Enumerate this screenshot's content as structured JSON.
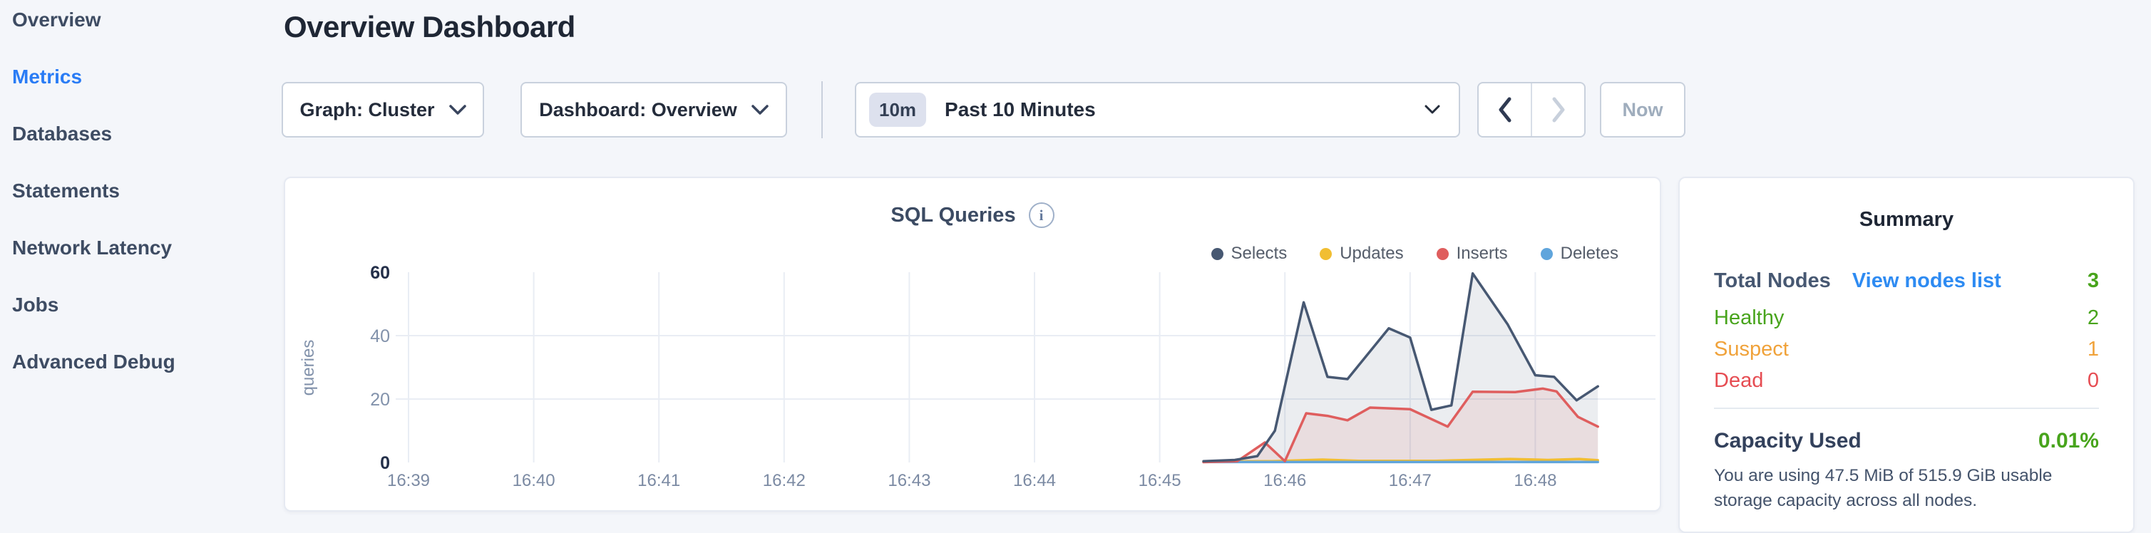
{
  "sidebar": {
    "items": [
      {
        "label": "Overview",
        "active": false
      },
      {
        "label": "Metrics",
        "active": true
      },
      {
        "label": "Databases",
        "active": false
      },
      {
        "label": "Statements",
        "active": false
      },
      {
        "label": "Network Latency",
        "active": false
      },
      {
        "label": "Jobs",
        "active": false
      },
      {
        "label": "Advanced Debug",
        "active": false
      }
    ]
  },
  "header": {
    "title": "Overview Dashboard"
  },
  "toolbar": {
    "graph_dropdown": {
      "label": "Graph: Cluster"
    },
    "dashboard_dropdown": {
      "label": "Dashboard: Overview"
    },
    "time_selector": {
      "badge": "10m",
      "label": "Past 10 Minutes"
    },
    "now_button": {
      "label": "Now"
    }
  },
  "icons": {
    "info": "i"
  },
  "chart_data": {
    "type": "area-line",
    "title": "SQL Queries",
    "ylabel": "queries",
    "yticks": [
      0,
      20,
      40,
      60
    ],
    "ylim": [
      0,
      60
    ],
    "grid_h_values": [
      20,
      40
    ],
    "legend_position": "top-right",
    "x_ticks": [
      {
        "t": 0,
        "label": "16:39"
      },
      {
        "t": 1,
        "label": "16:40"
      },
      {
        "t": 2,
        "label": "16:41"
      },
      {
        "t": 3,
        "label": "16:42"
      },
      {
        "t": 4,
        "label": "16:43"
      },
      {
        "t": 5,
        "label": "16:44"
      },
      {
        "t": 6,
        "label": "16:45"
      },
      {
        "t": 7,
        "label": "16:46"
      },
      {
        "t": 8,
        "label": "16:47"
      },
      {
        "t": 9,
        "label": "16:48"
      }
    ],
    "series": [
      {
        "name": "Selects",
        "color": "#475872",
        "fill": "rgba(71,88,114,0.11)",
        "points": [
          [
            6.35,
            0.4
          ],
          [
            6.6,
            0.8
          ],
          [
            6.78,
            2
          ],
          [
            6.92,
            10
          ],
          [
            7.15,
            50.5
          ],
          [
            7.34,
            27
          ],
          [
            7.5,
            26.3
          ],
          [
            7.83,
            42.3
          ],
          [
            8.0,
            39.4
          ],
          [
            8.17,
            16.6
          ],
          [
            8.33,
            18
          ],
          [
            8.5,
            59.6
          ],
          [
            8.78,
            43.5
          ],
          [
            9.0,
            27.5
          ],
          [
            9.15,
            27
          ],
          [
            9.33,
            19.6
          ],
          [
            9.5,
            24
          ]
        ]
      },
      {
        "name": "Updates",
        "color": "#f1be32",
        "fill": "rgba(241,190,50,0.14)",
        "points": [
          [
            6.35,
            0.3
          ],
          [
            6.9,
            0.4
          ],
          [
            7.3,
            0.9
          ],
          [
            7.6,
            0.5
          ],
          [
            8.2,
            0.5
          ],
          [
            8.8,
            1.1
          ],
          [
            9.1,
            0.8
          ],
          [
            9.35,
            1.1
          ],
          [
            9.5,
            0.7
          ]
        ]
      },
      {
        "name": "Inserts",
        "color": "#df5e5e",
        "fill": "rgba(223,94,94,0.11)",
        "points": [
          [
            6.35,
            0.1
          ],
          [
            6.62,
            0.4
          ],
          [
            6.84,
            6.3
          ],
          [
            7.0,
            0.4
          ],
          [
            7.17,
            15.5
          ],
          [
            7.34,
            14.7
          ],
          [
            7.5,
            13.3
          ],
          [
            7.68,
            17.3
          ],
          [
            8.0,
            16.8
          ],
          [
            8.3,
            11.3
          ],
          [
            8.5,
            22.3
          ],
          [
            8.84,
            22.2
          ],
          [
            9.06,
            23.3
          ],
          [
            9.17,
            22.4
          ],
          [
            9.34,
            14.4
          ],
          [
            9.5,
            11.3
          ]
        ]
      },
      {
        "name": "Deletes",
        "color": "#60a5dc",
        "fill": "rgba(96,165,220,0.14)",
        "points": [
          [
            6.35,
            0.15
          ],
          [
            7.0,
            0.15
          ],
          [
            8.0,
            0.15
          ],
          [
            9.0,
            0.15
          ],
          [
            9.5,
            0.15
          ]
        ]
      }
    ]
  },
  "summary": {
    "title": "Summary",
    "total_nodes": {
      "label": "Total Nodes",
      "link": "View nodes list",
      "value": "3"
    },
    "healthy": {
      "label": "Healthy",
      "value": "2"
    },
    "suspect": {
      "label": "Suspect",
      "value": "1"
    },
    "dead": {
      "label": "Dead",
      "value": "0"
    },
    "capacity": {
      "label": "Capacity Used",
      "value": "0.01%",
      "description": "You are using 47.5 MiB of 515.9 GiB usable storage capacity across all nodes."
    }
  },
  "colors": {
    "page_bg": "#f4f6fa",
    "card_bg": "#ffffff",
    "active_nav": "#2a7cf5",
    "link_blue": "#2e8bf2",
    "green": "#48a41c",
    "orange": "#f0a23a",
    "red": "#e64c52",
    "selects": "#475872",
    "updates": "#f1be32",
    "inserts": "#df5e5e",
    "deletes": "#60a5dc"
  }
}
